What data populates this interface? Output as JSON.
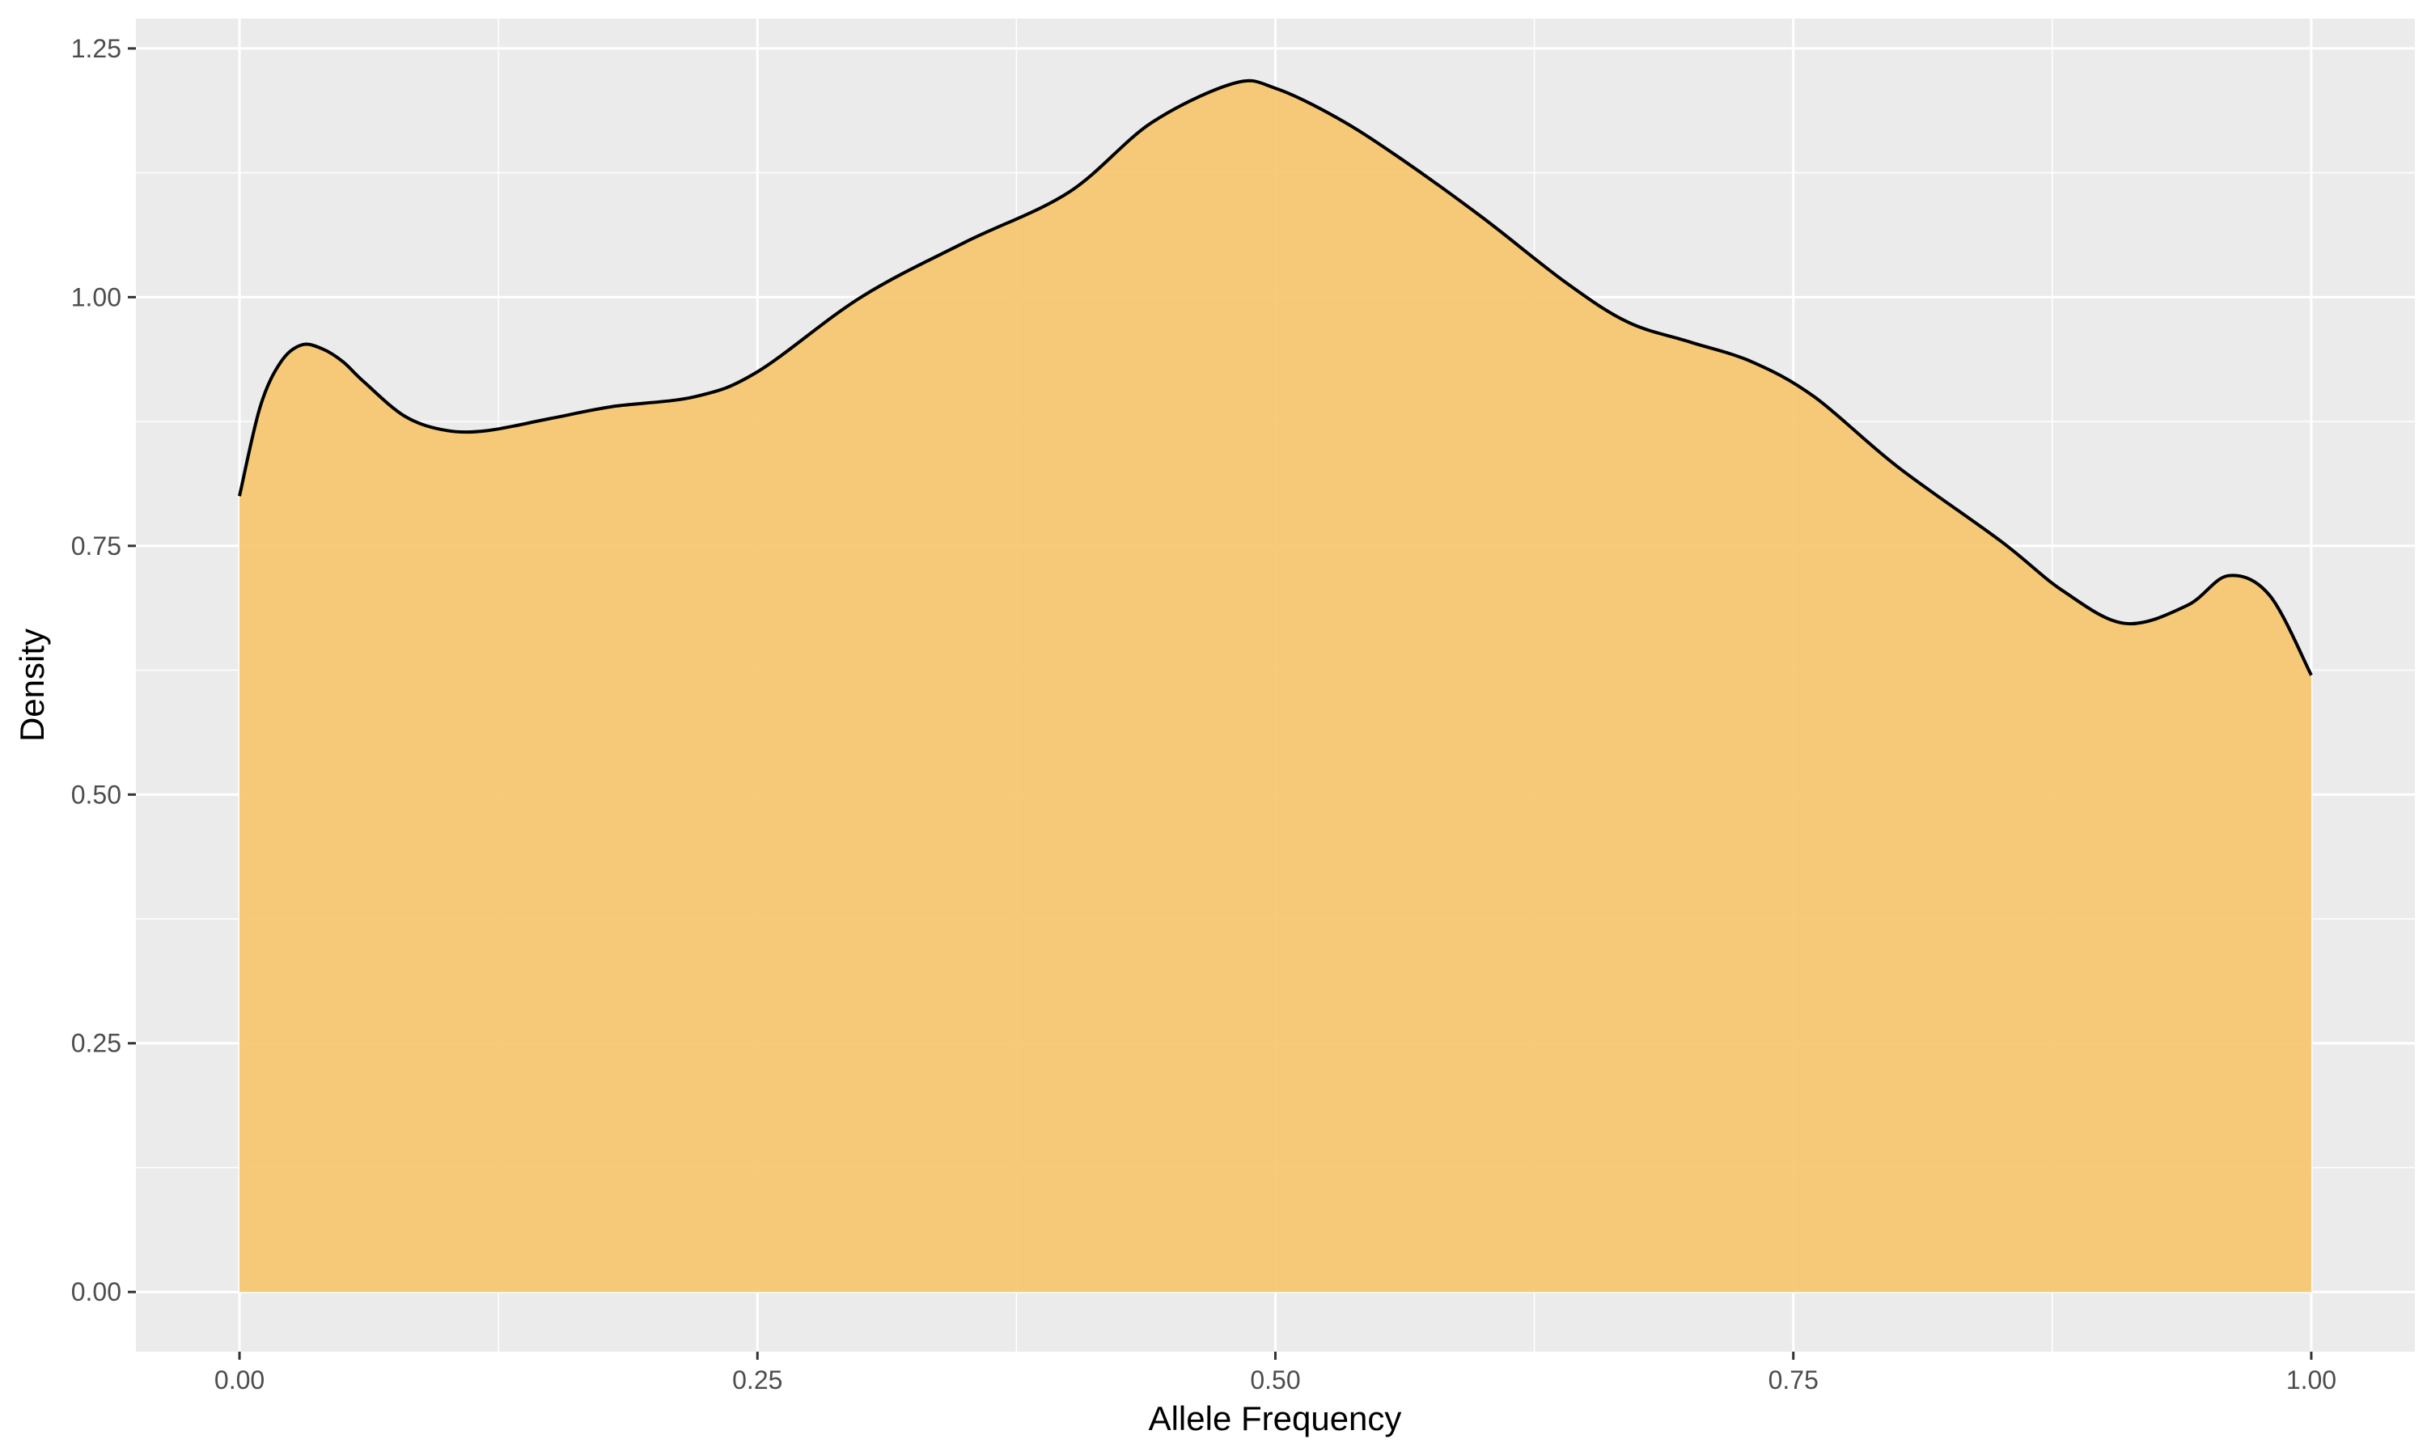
{
  "chart_data": {
    "type": "area",
    "xlabel": "Allele Frequency",
    "ylabel": "Density",
    "xlim": [
      -0.05,
      1.05
    ],
    "ylim": [
      -0.06,
      1.28
    ],
    "x_ticks": [
      0,
      0.25,
      0.5,
      0.75,
      1.0
    ],
    "x_tick_labels": [
      "0.00",
      "0.25",
      "0.50",
      "0.75",
      "1.00"
    ],
    "y_ticks": [
      0,
      0.25,
      0.5,
      0.75,
      1.0,
      1.25
    ],
    "y_tick_labels": [
      "0.00",
      "0.25",
      "0.50",
      "0.75",
      "1.00",
      "1.25"
    ],
    "grid": true,
    "legend": "none",
    "series": [
      {
        "fill_color": "#f5c771",
        "line_color": "#000000",
        "x": [
          0.0,
          0.01,
          0.02,
          0.03,
          0.04,
          0.05,
          0.06,
          0.08,
          0.1,
          0.12,
          0.15,
          0.18,
          0.22,
          0.25,
          0.3,
          0.35,
          0.4,
          0.44,
          0.48,
          0.5,
          0.53,
          0.56,
          0.6,
          0.64,
          0.67,
          0.7,
          0.73,
          0.76,
          0.8,
          0.85,
          0.88,
          0.91,
          0.94,
          0.96,
          0.98,
          1.0
        ],
        "values": [
          0.8,
          0.89,
          0.935,
          0.952,
          0.948,
          0.935,
          0.915,
          0.88,
          0.866,
          0.866,
          0.878,
          0.89,
          0.9,
          0.925,
          1.0,
          1.055,
          1.105,
          1.175,
          1.215,
          1.21,
          1.18,
          1.14,
          1.08,
          1.015,
          0.975,
          0.955,
          0.935,
          0.9,
          0.83,
          0.755,
          0.705,
          0.672,
          0.69,
          0.72,
          0.7,
          0.62
        ]
      }
    ]
  }
}
